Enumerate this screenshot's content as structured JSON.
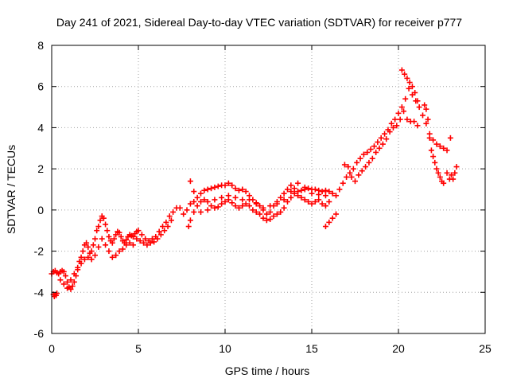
{
  "chart_data": {
    "type": "scatter",
    "title": "Day 241 of 2021, Sidereal Day-to-day VTEC variation (SDTVAR) for receiver p777",
    "xlabel": "GPS time / hours",
    "ylabel": "SDTVAR / TECUs",
    "xlim": [
      0,
      25
    ],
    "ylim": [
      -6,
      8
    ],
    "xticks": [
      0,
      5,
      10,
      15,
      20,
      25
    ],
    "yticks": [
      -6,
      -4,
      -2,
      0,
      2,
      4,
      6,
      8
    ],
    "grid": true,
    "legend": "none",
    "marker": "+",
    "color": "#ff0000",
    "series": [
      {
        "name": "SDTVAR",
        "points": [
          [
            0.0,
            -3.1
          ],
          [
            0.1,
            -3.0
          ],
          [
            0.2,
            -2.95
          ],
          [
            0.3,
            -3.05
          ],
          [
            0.4,
            -3.1
          ],
          [
            0.5,
            -3.0
          ],
          [
            0.6,
            -2.95
          ],
          [
            0.7,
            -3.0
          ],
          [
            0.8,
            -3.2
          ],
          [
            0.9,
            -3.5
          ],
          [
            1.0,
            -3.75
          ],
          [
            1.1,
            -3.85
          ],
          [
            1.2,
            -3.7
          ],
          [
            1.3,
            -3.5
          ],
          [
            1.4,
            -3.2
          ],
          [
            1.5,
            -2.8
          ],
          [
            1.6,
            -2.5
          ],
          [
            1.7,
            -2.3
          ],
          [
            1.8,
            -2.0
          ],
          [
            1.9,
            -1.7
          ],
          [
            2.0,
            -1.6
          ],
          [
            2.1,
            -1.8
          ],
          [
            2.2,
            -2.1
          ],
          [
            2.3,
            -2.0
          ],
          [
            2.4,
            -1.7
          ],
          [
            2.5,
            -1.4
          ],
          [
            2.6,
            -1.0
          ],
          [
            2.7,
            -0.8
          ],
          [
            2.8,
            -0.5
          ],
          [
            2.9,
            -0.3
          ],
          [
            3.0,
            -0.4
          ],
          [
            3.1,
            -0.7
          ],
          [
            3.2,
            -1.0
          ],
          [
            3.3,
            -1.3
          ],
          [
            3.4,
            -1.5
          ],
          [
            3.5,
            -1.6
          ],
          [
            3.6,
            -1.4
          ],
          [
            3.7,
            -1.2
          ],
          [
            3.8,
            -1.05
          ],
          [
            3.9,
            -1.1
          ],
          [
            4.0,
            -1.3
          ],
          [
            4.1,
            -1.5
          ],
          [
            4.2,
            -1.6
          ],
          [
            4.3,
            -1.45
          ],
          [
            4.4,
            -1.3
          ],
          [
            4.5,
            -1.2
          ],
          [
            4.6,
            -1.25
          ],
          [
            4.7,
            -1.3
          ],
          [
            4.8,
            -1.15
          ],
          [
            4.9,
            -1.05
          ],
          [
            5.0,
            -1.0
          ],
          [
            5.2,
            -1.2
          ],
          [
            5.4,
            -1.4
          ],
          [
            5.6,
            -1.5
          ],
          [
            5.8,
            -1.4
          ],
          [
            6.0,
            -1.3
          ],
          [
            6.2,
            -1.05
          ],
          [
            6.4,
            -0.8
          ],
          [
            6.6,
            -0.6
          ],
          [
            6.8,
            -0.3
          ],
          [
            7.0,
            -0.1
          ],
          [
            7.2,
            0.1
          ],
          [
            7.4,
            0.1
          ],
          [
            7.6,
            -0.2
          ],
          [
            7.8,
            0.0
          ],
          [
            8.0,
            0.3
          ],
          [
            8.2,
            0.4
          ],
          [
            8.4,
            0.6
          ],
          [
            8.6,
            0.8
          ],
          [
            8.8,
            0.95
          ],
          [
            9.0,
            1.0
          ],
          [
            9.2,
            1.05
          ],
          [
            9.4,
            1.1
          ],
          [
            9.6,
            1.15
          ],
          [
            9.8,
            1.2
          ],
          [
            10.0,
            1.2
          ],
          [
            10.2,
            1.3
          ],
          [
            10.4,
            1.2
          ],
          [
            10.6,
            1.05
          ],
          [
            10.8,
            0.95
          ],
          [
            11.0,
            1.0
          ],
          [
            11.2,
            0.9
          ],
          [
            11.4,
            0.7
          ],
          [
            11.6,
            0.5
          ],
          [
            11.8,
            0.35
          ],
          [
            12.0,
            0.2
          ],
          [
            12.2,
            0.0
          ],
          [
            12.4,
            -0.2
          ],
          [
            12.6,
            -0.1
          ],
          [
            12.8,
            0.2
          ],
          [
            13.0,
            0.4
          ],
          [
            13.2,
            0.6
          ],
          [
            13.4,
            0.8
          ],
          [
            13.6,
            1.0
          ],
          [
            13.8,
            1.2
          ],
          [
            14.0,
            1.05
          ],
          [
            14.2,
            0.9
          ],
          [
            14.4,
            0.95
          ],
          [
            14.6,
            1.1
          ],
          [
            14.8,
            1.05
          ],
          [
            15.0,
            1.0
          ],
          [
            15.2,
            1.0
          ],
          [
            15.4,
            0.95
          ],
          [
            15.6,
            0.9
          ],
          [
            15.8,
            0.95
          ],
          [
            16.0,
            0.9
          ],
          [
            16.2,
            0.8
          ],
          [
            16.4,
            0.7
          ],
          [
            16.6,
            1.0
          ],
          [
            16.8,
            1.3
          ],
          [
            17.0,
            1.6
          ],
          [
            17.2,
            1.8
          ],
          [
            17.4,
            2.0
          ],
          [
            17.6,
            2.3
          ],
          [
            17.8,
            2.5
          ],
          [
            18.0,
            2.7
          ],
          [
            18.2,
            2.8
          ],
          [
            18.4,
            2.95
          ],
          [
            18.6,
            3.1
          ],
          [
            18.8,
            3.3
          ],
          [
            19.0,
            3.5
          ],
          [
            19.2,
            3.7
          ],
          [
            19.4,
            3.9
          ],
          [
            19.6,
            4.2
          ],
          [
            19.8,
            4.4
          ],
          [
            20.0,
            4.7
          ],
          [
            20.2,
            5.0
          ],
          [
            20.4,
            5.4
          ],
          [
            20.6,
            5.9
          ],
          [
            20.8,
            5.6
          ],
          [
            21.0,
            5.3
          ],
          [
            21.2,
            5.0
          ],
          [
            21.4,
            4.6
          ],
          [
            21.6,
            4.2
          ],
          [
            21.8,
            3.7
          ],
          [
            22.0,
            3.4
          ],
          [
            22.2,
            3.2
          ],
          [
            22.4,
            3.1
          ],
          [
            22.6,
            3.0
          ],
          [
            22.8,
            2.9
          ],
          [
            0.1,
            -4.1
          ],
          [
            0.15,
            -4.2
          ],
          [
            0.25,
            -4.15
          ],
          [
            0.3,
            -4.05
          ],
          [
            0.5,
            -3.4
          ],
          [
            0.7,
            -3.6
          ],
          [
            0.9,
            -3.8
          ],
          [
            1.1,
            -3.4
          ],
          [
            1.3,
            -3.1
          ],
          [
            1.5,
            -2.9
          ],
          [
            1.7,
            -2.6
          ],
          [
            1.9,
            -2.4
          ],
          [
            2.1,
            -2.3
          ],
          [
            2.3,
            -2.4
          ],
          [
            2.5,
            -2.2
          ],
          [
            2.7,
            -1.8
          ],
          [
            2.9,
            -1.4
          ],
          [
            3.1,
            -1.7
          ],
          [
            3.3,
            -2.0
          ],
          [
            3.5,
            -2.3
          ],
          [
            3.7,
            -2.2
          ],
          [
            3.9,
            -2.0
          ],
          [
            4.1,
            -1.9
          ],
          [
            4.3,
            -1.7
          ],
          [
            4.5,
            -1.6
          ],
          [
            4.7,
            -1.7
          ],
          [
            4.9,
            -1.4
          ],
          [
            5.1,
            -1.5
          ],
          [
            5.3,
            -1.6
          ],
          [
            5.5,
            -1.7
          ],
          [
            5.7,
            -1.6
          ],
          [
            5.9,
            -1.55
          ],
          [
            6.1,
            -1.4
          ],
          [
            6.3,
            -1.2
          ],
          [
            6.5,
            -1.0
          ],
          [
            6.7,
            -0.8
          ],
          [
            6.9,
            -0.5
          ],
          [
            7.9,
            -0.8
          ],
          [
            8.0,
            -0.5
          ],
          [
            8.2,
            -0.1
          ],
          [
            8.4,
            0.2
          ],
          [
            8.6,
            0.4
          ],
          [
            8.8,
            0.5
          ],
          [
            9.0,
            0.4
          ],
          [
            9.2,
            0.2
          ],
          [
            9.4,
            0.1
          ],
          [
            9.6,
            0.15
          ],
          [
            9.8,
            0.3
          ],
          [
            10.0,
            0.4
          ],
          [
            10.2,
            0.5
          ],
          [
            10.4,
            0.35
          ],
          [
            10.6,
            0.2
          ],
          [
            10.8,
            0.1
          ],
          [
            11.0,
            0.2
          ],
          [
            11.2,
            0.3
          ],
          [
            11.4,
            0.2
          ],
          [
            11.6,
            0.0
          ],
          [
            11.8,
            -0.1
          ],
          [
            12.0,
            -0.2
          ],
          [
            12.2,
            -0.4
          ],
          [
            12.4,
            -0.5
          ],
          [
            12.6,
            -0.45
          ],
          [
            12.8,
            -0.3
          ],
          [
            13.0,
            -0.2
          ],
          [
            13.2,
            -0.1
          ],
          [
            13.4,
            0.1
          ],
          [
            13.6,
            0.4
          ],
          [
            13.8,
            0.6
          ],
          [
            14.0,
            0.8
          ],
          [
            14.2,
            0.7
          ],
          [
            14.4,
            0.6
          ],
          [
            14.6,
            0.5
          ],
          [
            14.8,
            0.4
          ],
          [
            15.0,
            0.3
          ],
          [
            15.2,
            0.4
          ],
          [
            15.4,
            0.5
          ],
          [
            15.6,
            0.3
          ],
          [
            15.8,
            0.2
          ],
          [
            15.8,
            -0.8
          ],
          [
            16.0,
            -0.6
          ],
          [
            16.2,
            -0.4
          ],
          [
            16.4,
            -0.2
          ],
          [
            8.0,
            1.4
          ],
          [
            8.2,
            0.9
          ],
          [
            8.6,
            -0.1
          ],
          [
            9.0,
            0.0
          ],
          [
            9.4,
            0.5
          ],
          [
            9.8,
            0.6
          ],
          [
            10.2,
            0.7
          ],
          [
            10.6,
            0.6
          ],
          [
            11.0,
            0.5
          ],
          [
            11.4,
            0.5
          ],
          [
            11.8,
            0.3
          ],
          [
            12.2,
            0.1
          ],
          [
            12.6,
            0.2
          ],
          [
            13.0,
            0.3
          ],
          [
            13.4,
            0.5
          ],
          [
            13.8,
            0.9
          ],
          [
            14.2,
            1.3
          ],
          [
            14.6,
            1.0
          ],
          [
            15.0,
            0.8
          ],
          [
            15.4,
            0.75
          ],
          [
            15.8,
            0.7
          ],
          [
            16.0,
            0.4
          ],
          [
            16.9,
            2.2
          ],
          [
            17.1,
            2.1
          ],
          [
            17.3,
            1.6
          ],
          [
            17.5,
            1.4
          ],
          [
            17.7,
            1.7
          ],
          [
            17.9,
            1.9
          ],
          [
            18.1,
            2.1
          ],
          [
            18.3,
            2.3
          ],
          [
            18.5,
            2.5
          ],
          [
            18.7,
            2.8
          ],
          [
            18.9,
            3.0
          ],
          [
            19.1,
            3.2
          ],
          [
            19.3,
            3.45
          ],
          [
            19.5,
            3.8
          ],
          [
            19.7,
            4.0
          ],
          [
            19.9,
            4.1
          ],
          [
            20.1,
            4.4
          ],
          [
            20.3,
            4.8
          ],
          [
            20.5,
            4.4
          ],
          [
            20.7,
            4.3
          ],
          [
            20.9,
            4.3
          ],
          [
            21.1,
            4.1
          ],
          [
            20.2,
            6.8
          ],
          [
            20.35,
            6.6
          ],
          [
            20.5,
            6.4
          ],
          [
            20.65,
            6.2
          ],
          [
            20.8,
            6.0
          ],
          [
            20.95,
            5.7
          ],
          [
            21.1,
            5.3
          ],
          [
            21.5,
            5.1
          ],
          [
            21.6,
            4.9
          ],
          [
            21.7,
            4.4
          ],
          [
            21.8,
            3.5
          ],
          [
            21.9,
            2.9
          ],
          [
            22.0,
            2.6
          ],
          [
            22.1,
            2.3
          ],
          [
            22.2,
            2.0
          ],
          [
            22.3,
            1.8
          ],
          [
            22.4,
            1.6
          ],
          [
            22.5,
            1.4
          ],
          [
            22.6,
            1.3
          ],
          [
            22.8,
            1.8
          ],
          [
            22.95,
            1.5
          ],
          [
            23.05,
            1.7
          ],
          [
            23.15,
            1.5
          ],
          [
            23.25,
            1.8
          ],
          [
            23.35,
            2.1
          ],
          [
            23.0,
            3.5
          ]
        ]
      }
    ]
  }
}
